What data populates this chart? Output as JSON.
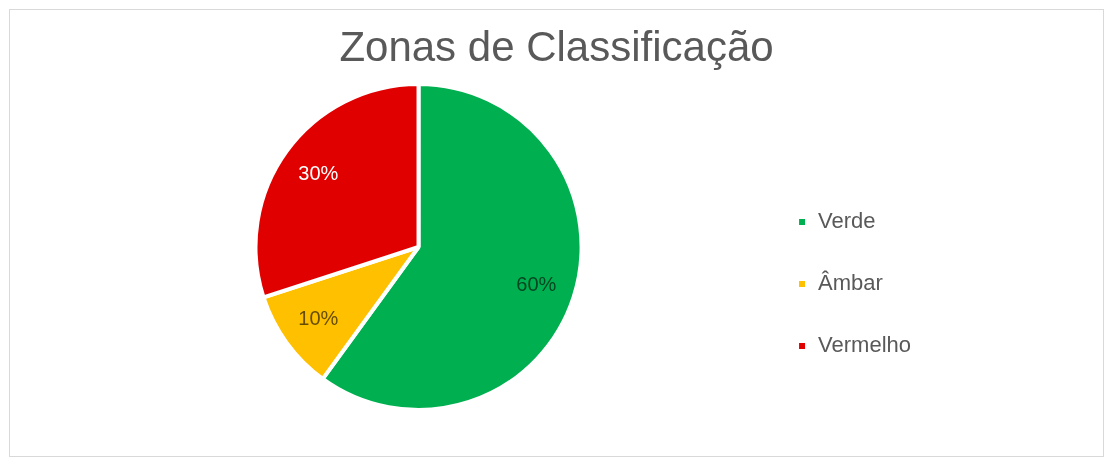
{
  "chart_data": {
    "type": "pie",
    "title": "Zonas de Classificação",
    "categories": [
      "Verde",
      "Âmbar",
      "Vermelho"
    ],
    "values": [
      60,
      10,
      30
    ],
    "colors": [
      "#00b050",
      "#ffc000",
      "#e00000"
    ],
    "value_labels": [
      "60%",
      "10%",
      "30%"
    ],
    "legend": "right"
  }
}
